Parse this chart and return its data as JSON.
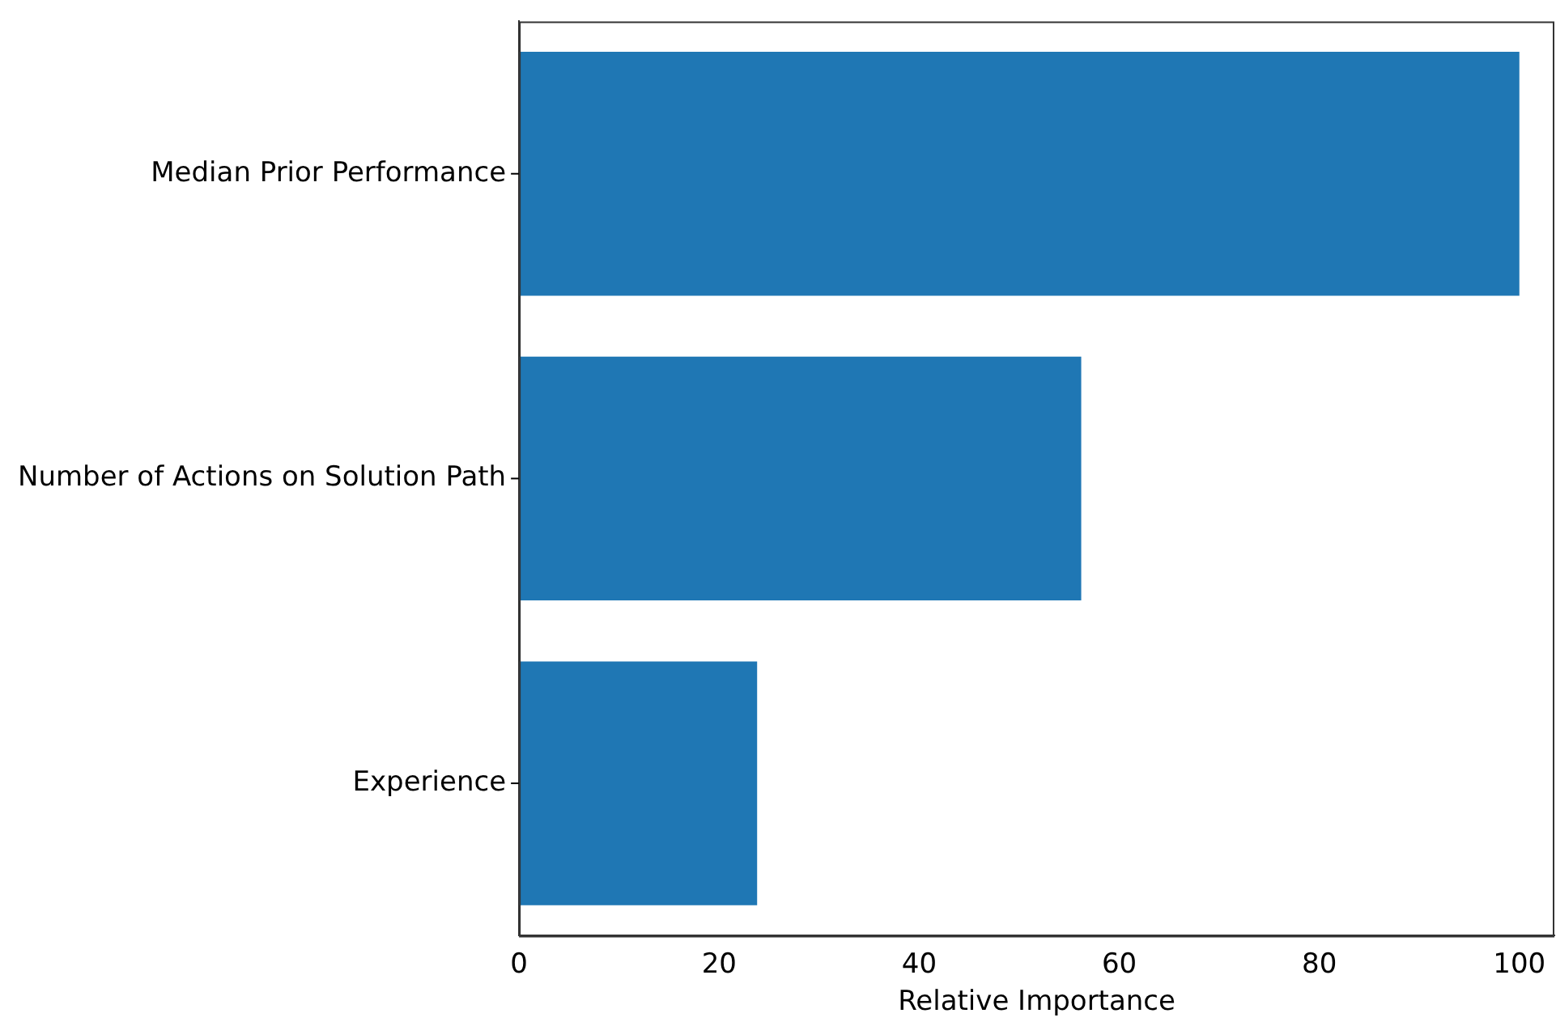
{
  "chart_data": {
    "type": "bar",
    "orientation": "horizontal",
    "xlabel": "Relative Importance",
    "categories": [
      "Median Prior Performance",
      "Number of Actions on Solution Path",
      "Experience"
    ],
    "values": [
      100,
      56.2,
      23.8
    ],
    "color": "#1f77b4",
    "xlim": [
      0,
      103.5
    ],
    "xticks": [
      0,
      20,
      40,
      60,
      80,
      100
    ],
    "grid": false,
    "legend": false
  }
}
